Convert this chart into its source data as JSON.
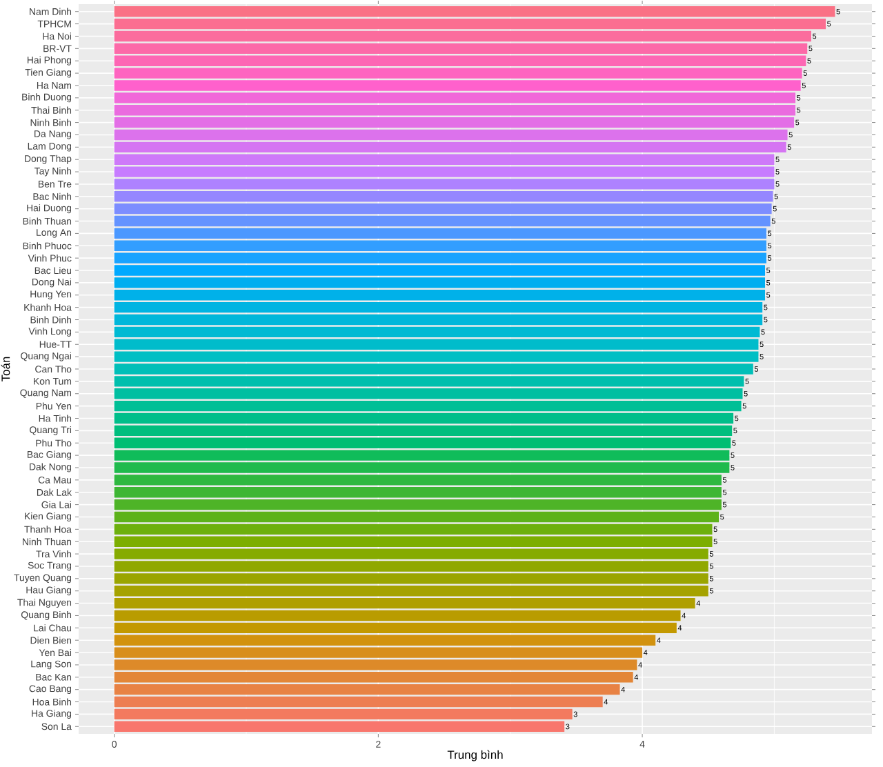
{
  "chart_data": {
    "type": "bar",
    "orientation": "horizontal",
    "xlabel": "Trung bình",
    "ylabel": "Toán",
    "categories": [
      "Nam Dinh",
      "TPHCM",
      "Ha Noi",
      "BR-VT",
      "Hai Phong",
      "Tien Giang",
      "Ha Nam",
      "Binh Duong",
      "Thai Binh",
      "Ninh Binh",
      "Da Nang",
      "Lam Dong",
      "Dong Thap",
      "Tay Ninh",
      "Ben Tre",
      "Bac Ninh",
      "Hai Duong",
      "Binh Thuan",
      "Long An",
      "Binh Phuoc",
      "Vinh Phuc",
      "Bac Lieu",
      "Dong Nai",
      "Hung Yen",
      "Khanh Hoa",
      "Binh Dinh",
      "Vinh Long",
      "Hue-TT",
      "Quang Ngai",
      "Can Tho",
      "Kon Tum",
      "Quang Nam",
      "Phu Yen",
      "Ha Tinh",
      "Quang Tri",
      "Phu Tho",
      "Bac Giang",
      "Dak Nong",
      "Ca Mau",
      "Dak Lak",
      "Gia Lai",
      "Kien Giang",
      "Thanh Hoa",
      "Ninh Thuan",
      "Tra Vinh",
      "Soc Trang",
      "Tuyen Quang",
      "Hau Giang",
      "Thai Nguyen",
      "Quang Binh",
      "Lai Chau",
      "Dien Bien",
      "Yen Bai",
      "Lang Son",
      "Bac Kan",
      "Cao Bang",
      "Hoa Binh",
      "Ha Giang",
      "Son La"
    ],
    "values": [
      5.46,
      5.39,
      5.28,
      5.25,
      5.24,
      5.21,
      5.2,
      5.16,
      5.16,
      5.15,
      5.1,
      5.09,
      5.0,
      5.0,
      5.0,
      4.99,
      4.98,
      4.97,
      4.94,
      4.94,
      4.94,
      4.93,
      4.93,
      4.93,
      4.91,
      4.91,
      4.89,
      4.88,
      4.88,
      4.84,
      4.77,
      4.76,
      4.75,
      4.69,
      4.68,
      4.67,
      4.66,
      4.66,
      4.6,
      4.6,
      4.6,
      4.58,
      4.53,
      4.53,
      4.5,
      4.5,
      4.5,
      4.5,
      4.4,
      4.29,
      4.26,
      4.1,
      4.0,
      3.96,
      3.93,
      3.83,
      3.7,
      3.47,
      3.41
    ],
    "value_labels": [
      "5",
      "5",
      "5",
      "5",
      "5",
      "5",
      "5",
      "5",
      "5",
      "5",
      "5",
      "5",
      "5",
      "5",
      "5",
      "5",
      "5",
      "5",
      "5",
      "5",
      "5",
      "5",
      "5",
      "5",
      "5",
      "5",
      "5",
      "5",
      "5",
      "5",
      "5",
      "5",
      "5",
      "5",
      "5",
      "5",
      "5",
      "5",
      "5",
      "5",
      "5",
      "5",
      "5",
      "5",
      "5",
      "5",
      "5",
      "5",
      "4",
      "4",
      "4",
      "4",
      "4",
      "4",
      "4",
      "4",
      "4",
      "3",
      "3"
    ],
    "colors": [
      "#FA7185",
      "#FB6E91",
      "#FB6C9D",
      "#FC69A8",
      "#FD66B4",
      "#FE64C0",
      "#FF61CC",
      "#F168D9",
      "#EA6BDF",
      "#E36EE6",
      "#DC72EC",
      "#D575F2",
      "#CE79F9",
      "#C77CFF",
      "#AE82FF",
      "#9587FF",
      "#7C8DFF",
      "#6493FF",
      "#4B98FF",
      "#329EFF",
      "#19A3FF",
      "#00A9FF",
      "#00AEF0",
      "#00B1E9",
      "#00B4E2",
      "#00B7DA",
      "#00BAD3",
      "#00BCCB",
      "#00BFC4",
      "#00BFB8",
      "#00BFAD",
      "#00BFA1",
      "#00BF96",
      "#00BE8A",
      "#00BE7E",
      "#00BE73",
      "#10BC5A",
      "#1FBA4D",
      "#2FB840",
      "#3EB634",
      "#4EB427",
      "#5DB21A",
      "#6DB00D",
      "#7CAE00",
      "#86AB00",
      "#90A800",
      "#9AA500",
      "#A5A200",
      "#AF9F00",
      "#B99C00",
      "#C39900",
      "#D2920E",
      "#D88E1B",
      "#DD8A29",
      "#E38637",
      "#E88244",
      "#ED7E52",
      "#F37A5F",
      "#F8766D"
    ],
    "xlim": [
      -0.27,
      5.74
    ],
    "xticks": [
      0,
      2,
      4
    ],
    "grid": true
  }
}
